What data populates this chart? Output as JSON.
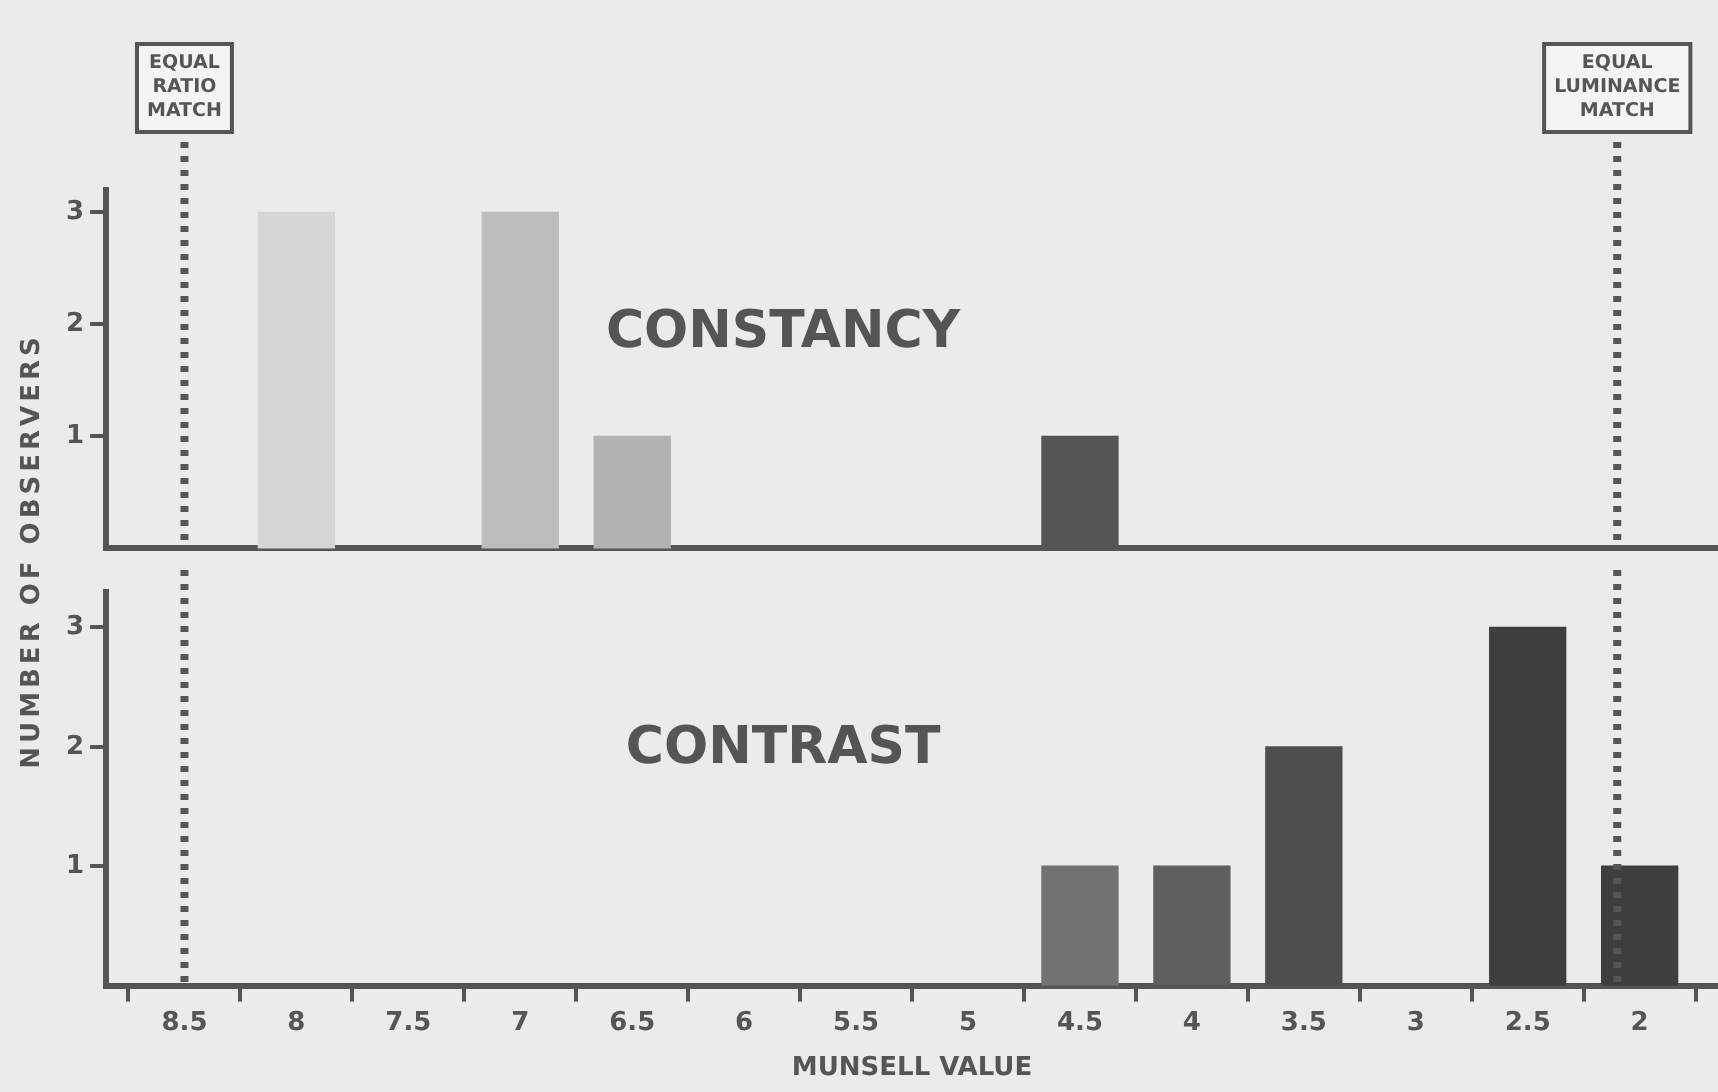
{
  "chart_data": [
    {
      "type": "bar",
      "title": "CONSTANCY",
      "ylabel": "NUMBER OF OBSERVERS",
      "x": [
        8,
        7,
        6.5,
        4.5
      ],
      "values": [
        3,
        3,
        1,
        1
      ],
      "colors": [
        "#d6d6d4",
        "#bdbdbb",
        "#b2b2b0",
        "#555555"
      ],
      "xlim": [
        8.85,
        1.65
      ],
      "xticks": [
        8.5,
        8,
        7.5,
        7,
        6.5,
        6,
        5.5,
        5,
        4.5,
        4,
        3.5,
        3,
        2.5,
        2
      ],
      "ylim": [
        0,
        3.2
      ],
      "yticks": [
        1,
        2,
        3
      ],
      "tick_labels": "y",
      "grid": false,
      "legend": false,
      "ref_lines": [
        {
          "axis": "x",
          "value": 8.5,
          "label": "EQUAL RATIO MATCH",
          "line_style": "dotted"
        },
        {
          "axis": "x",
          "value": 2.1,
          "label": "EQUAL LUMINANCE MATCH",
          "line_style": "dotted"
        }
      ]
    },
    {
      "type": "bar",
      "title": "CONTRAST",
      "xlabel": "MUNSELL VALUE",
      "x": [
        4.5,
        4,
        3.5,
        2.5,
        2
      ],
      "values": [
        1,
        1,
        2,
        3,
        1
      ],
      "colors": [
        "#727272",
        "#5e5e5e",
        "#4e4e4e",
        "#3e3e3e",
        "#3e3e3e"
      ],
      "xlim": [
        8.85,
        1.65
      ],
      "xticks": [
        8.5,
        8,
        7.5,
        7,
        6.5,
        6,
        5.5,
        5,
        4.5,
        4,
        3.5,
        3,
        2.5,
        2
      ],
      "ylim": [
        0,
        3.3
      ],
      "yticks": [
        1,
        2,
        3
      ],
      "grid": false,
      "legend": false,
      "ref_lines": [
        {
          "axis": "x",
          "value": 8.5,
          "line_style": "dotted"
        },
        {
          "axis": "x",
          "value": 2.1,
          "line_style": "dotted"
        }
      ]
    }
  ]
}
